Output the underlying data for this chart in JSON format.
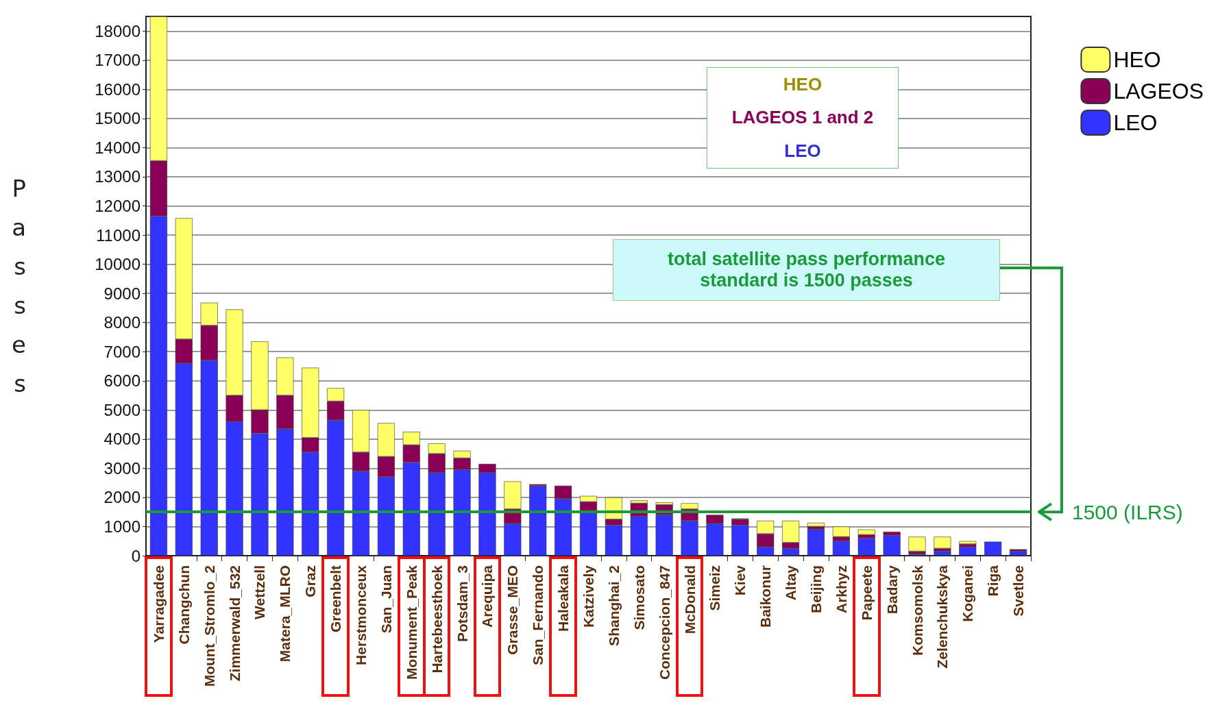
{
  "chart_data": {
    "type": "bar",
    "stacked": true,
    "ylabel": "Passes",
    "categories": [
      "Yarragadee",
      "Changchun",
      "Mount_Stromlo_2",
      "Zimmerwald_532",
      "Wettzell",
      "Matera_MLRO",
      "Graz",
      "Greenbelt",
      "Herstmonceux",
      "San_Juan",
      "Monument_Peak",
      "Hartebeesthoek",
      "Potsdam_3",
      "Arequipa",
      "Grasse_MEO",
      "San_Fernando",
      "Haleakala",
      "Katzively",
      "Shanghai_2",
      "Simosato",
      "Concepcion_847",
      "McDonald",
      "Simeiz",
      "Kiev",
      "Baikonur",
      "Altay",
      "Beijing",
      "Arkhyz",
      "Papeete",
      "Badary",
      "Komsomolsk",
      "Zelenchukskya",
      "Koganei",
      "Riga",
      "Svetloe"
    ],
    "series": [
      {
        "name": "LEO",
        "color": "#3333ff",
        "values": [
          11650,
          6600,
          6700,
          4600,
          4200,
          4350,
          3550,
          4650,
          2900,
          2700,
          3200,
          2850,
          2950,
          2850,
          1100,
          2400,
          1950,
          1500,
          1050,
          1350,
          1400,
          1200,
          1100,
          1050,
          300,
          250,
          900,
          500,
          600,
          700,
          50,
          150,
          300,
          480,
          150
        ]
      },
      {
        "name": "LAGEOS",
        "color": "#8b0057",
        "values": [
          1900,
          830,
          1200,
          900,
          800,
          1150,
          500,
          650,
          650,
          700,
          600,
          650,
          400,
          300,
          500,
          50,
          450,
          350,
          200,
          450,
          350,
          400,
          300,
          200,
          450,
          200,
          100,
          150,
          120,
          120,
          100,
          100,
          100,
          0,
          70
        ]
      },
      {
        "name": "HEO",
        "color": "#ffff66",
        "values": [
          4950,
          4150,
          780,
          2950,
          2350,
          1300,
          2400,
          450,
          1450,
          1150,
          450,
          350,
          250,
          0,
          950,
          0,
          0,
          200,
          750,
          100,
          80,
          200,
          0,
          30,
          450,
          750,
          130,
          350,
          180,
          0,
          500,
          400,
          100,
          0,
          0
        ]
      }
    ],
    "ylim": [
      0,
      18500
    ],
    "yticks": [
      0,
      1000,
      2000,
      3000,
      4000,
      5000,
      6000,
      7000,
      8000,
      9000,
      10000,
      11000,
      12000,
      13000,
      14000,
      15000,
      16000,
      17000,
      18000
    ],
    "grid": "y",
    "legend": "top right",
    "ref_lines": [
      {
        "axis": "y",
        "value": 1500,
        "label": "1500 (ILRS)",
        "color": "#1a9a3a"
      }
    ],
    "annotations": [
      "HEO",
      "LAGEOS 1 and 2",
      "LEO",
      "total satellite pass performance standard is 1500 passes"
    ]
  }
}
